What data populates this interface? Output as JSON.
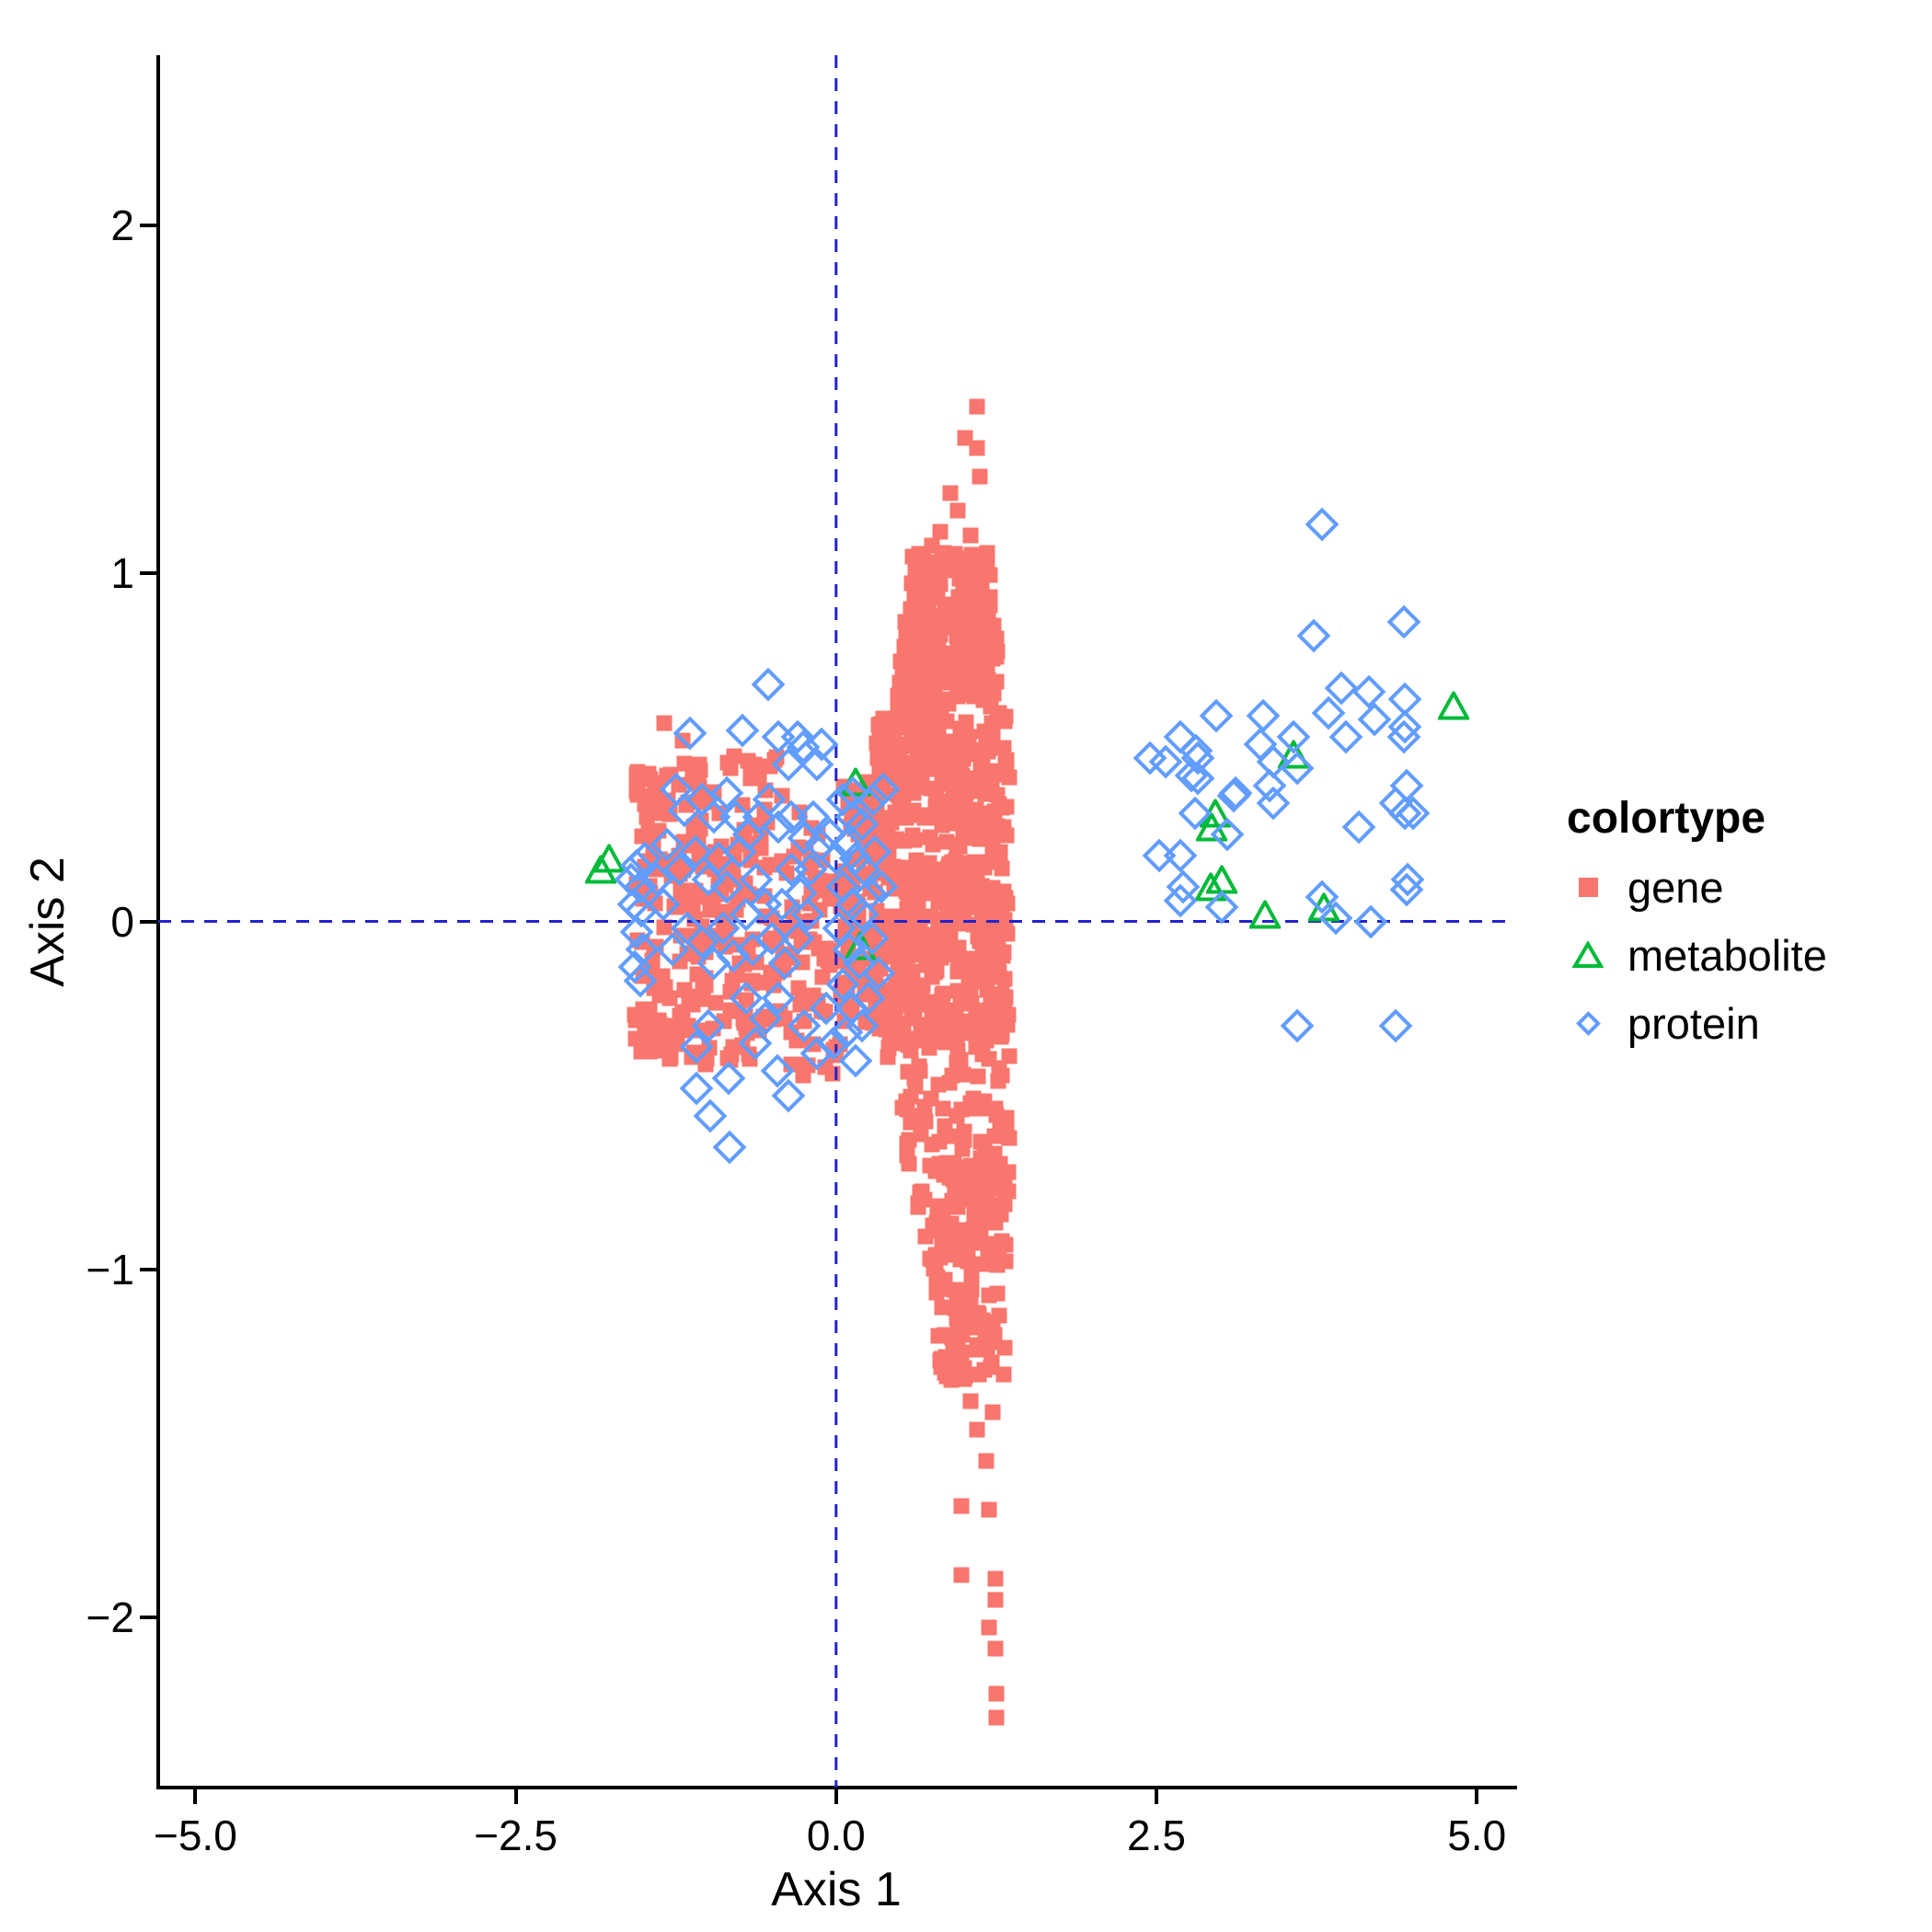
{
  "chart_data": {
    "type": "scatter",
    "title": "",
    "xlabel": "Axis 1",
    "ylabel": "Axis 2",
    "xlim": [
      -5.29,
      5.3
    ],
    "ylim": [
      -2.49,
      2.49
    ],
    "x_ticks": [
      -5.0,
      -2.5,
      0.0,
      2.5,
      5.0
    ],
    "x_tick_labels": [
      "−5.0",
      "−2.5",
      "0.0",
      "2.5",
      "5.0"
    ],
    "y_ticks": [
      2,
      1,
      0,
      -1,
      -2
    ],
    "y_tick_labels": [
      "2",
      "1",
      "0",
      "−1",
      "−2"
    ],
    "grid": false,
    "reference_lines": {
      "vline_x": 0,
      "hline_y": 0,
      "color": "#2323CE",
      "style": "dashed"
    },
    "legend": {
      "title": "colortype",
      "position": "right",
      "entries": [
        {
          "label": "gene",
          "marker": "filled-square",
          "color": "#F8766D"
        },
        {
          "label": "metabolite",
          "marker": "open-triangle",
          "color": "#00BA38"
        },
        {
          "label": "protein",
          "marker": "open-diamond",
          "color": "#619CFF"
        }
      ]
    },
    "series": [
      {
        "name": "gene",
        "marker": "filled-square",
        "color": "#F8766D",
        "marker_px": 17,
        "clusters": [
          {
            "shape": "rect",
            "x": [
              -1.57,
              -0.38
            ],
            "y": [
              -0.4,
              0.48
            ],
            "n": 280,
            "seed": 11
          },
          {
            "shape": "rect",
            "x": [
              -0.35,
              0.08
            ],
            "y": [
              -0.45,
              0.35
            ],
            "n": 70,
            "seed": 22
          },
          {
            "shape": "rect",
            "x": [
              0.05,
              0.35
            ],
            "y": [
              -0.3,
              0.4
            ],
            "n": 90,
            "seed": 33
          },
          {
            "shape": "rect",
            "x": [
              0.3,
              1.35
            ],
            "y": [
              -0.35,
              0.6
            ],
            "n": 520,
            "seed": 44
          },
          {
            "shape": "trapezoid_v",
            "y": [
              0.6,
              1.06
            ],
            "x_top": [
              0.6,
              1.2
            ],
            "x_bottom": [
              0.45,
              1.3
            ],
            "n": 240,
            "seed": 55
          },
          {
            "shape": "trapezoid_v",
            "y": [
              -1.0,
              -0.35
            ],
            "x_top": [
              0.35,
              1.35
            ],
            "x_bottom": [
              0.75,
              1.35
            ],
            "n": 180,
            "seed": 66
          },
          {
            "shape": "rect",
            "x": [
              0.78,
              1.32
            ],
            "y": [
              -1.32,
              -1.0
            ],
            "n": 70,
            "seed": 77
          }
        ],
        "points": [
          [
            1.1,
            1.48
          ],
          [
            1.01,
            1.39
          ],
          [
            1.1,
            1.36
          ],
          [
            1.12,
            1.28
          ],
          [
            0.89,
            1.23
          ],
          [
            0.95,
            1.18
          ],
          [
            0.81,
            1.12
          ],
          [
            1.05,
            1.11
          ],
          [
            1.18,
            1.06
          ],
          [
            0.75,
            1.08
          ],
          [
            0.68,
            1.04
          ],
          [
            0.85,
            -1.19
          ],
          [
            0.98,
            -1.24
          ],
          [
            1.18,
            -1.23
          ],
          [
            0.92,
            -1.29
          ],
          [
            1.16,
            -1.29
          ],
          [
            1.05,
            -1.38
          ],
          [
            1.22,
            -1.41
          ],
          [
            1.1,
            -1.46
          ],
          [
            1.17,
            -1.55
          ],
          [
            0.98,
            -1.68
          ],
          [
            1.19,
            -1.69
          ],
          [
            0.98,
            -1.88
          ],
          [
            1.24,
            -1.89
          ],
          [
            1.24,
            -1.95
          ],
          [
            1.19,
            -2.03
          ],
          [
            1.24,
            -2.09
          ],
          [
            1.25,
            -2.22
          ],
          [
            1.25,
            -2.29
          ],
          [
            -1.34,
            0.57
          ],
          [
            -1.2,
            0.52
          ],
          [
            -1.48,
            0.3
          ],
          [
            -1.31,
            -0.34
          ],
          [
            -1.02,
            -0.41
          ],
          [
            -0.35,
            -0.32
          ]
        ]
      },
      {
        "name": "metabolite",
        "marker": "open-triangle",
        "color": "#00BA38",
        "marker_px": 30,
        "stroke_px": 4,
        "points": [
          [
            -1.84,
            0.15
          ],
          [
            -1.77,
            0.18
          ],
          [
            0.15,
            0.4
          ],
          [
            0.19,
            -0.07
          ],
          [
            2.96,
            0.31
          ],
          [
            2.93,
            0.27
          ],
          [
            2.92,
            0.1
          ],
          [
            3.01,
            0.12
          ],
          [
            3.35,
            0.02
          ],
          [
            3.81,
            0.04
          ],
          [
            3.57,
            0.48
          ],
          [
            4.82,
            0.62
          ]
        ]
      },
      {
        "name": "protein",
        "marker": "open-diamond",
        "color": "#619CFF",
        "marker_px": 26,
        "stroke_px": 4,
        "points": [
          [
            -1.6,
            0.12
          ],
          [
            -1.56,
            0.16
          ],
          [
            -1.53,
            0.1
          ],
          [
            -1.58,
            0.05
          ],
          [
            -1.52,
            0.03
          ],
          [
            -1.56,
            -0.03
          ],
          [
            -1.51,
            -0.08
          ],
          [
            -1.57,
            -0.13
          ],
          [
            -1.53,
            -0.17
          ],
          [
            -1.49,
            0.18
          ],
          [
            -1.14,
            0.54
          ],
          [
            -0.73,
            0.55
          ],
          [
            -0.53,
            0.68
          ],
          [
            -0.45,
            0.53
          ],
          [
            -0.3,
            0.53
          ],
          [
            -0.26,
            0.5
          ],
          [
            -0.11,
            0.51
          ],
          [
            -0.37,
            0.45
          ],
          [
            -0.15,
            0.45
          ],
          [
            -1.25,
            0.38
          ],
          [
            -1.18,
            0.32
          ],
          [
            -1.05,
            0.35
          ],
          [
            -0.95,
            0.3
          ],
          [
            -0.85,
            0.37
          ],
          [
            -0.78,
            0.3
          ],
          [
            -1.32,
            0.22
          ],
          [
            -1.22,
            0.15
          ],
          [
            -1.1,
            0.2
          ],
          [
            -1.0,
            0.12
          ],
          [
            -0.92,
            0.18
          ],
          [
            -0.85,
            0.1
          ],
          [
            -0.75,
            0.2
          ],
          [
            -0.68,
            0.25
          ],
          [
            -0.6,
            0.3
          ],
          [
            -0.52,
            0.35
          ],
          [
            -0.45,
            0.27
          ],
          [
            -0.62,
            0.12
          ],
          [
            -0.55,
            0.05
          ],
          [
            -0.7,
            0.02
          ],
          [
            -0.88,
            -0.02
          ],
          [
            -1.05,
            -0.06
          ],
          [
            -1.16,
            -0.02
          ],
          [
            -0.95,
            -0.12
          ],
          [
            -0.8,
            -0.1
          ],
          [
            -0.65,
            -0.08
          ],
          [
            -0.5,
            -0.05
          ],
          [
            -0.42,
            0.05
          ],
          [
            -0.35,
            0.15
          ],
          [
            -0.28,
            0.08
          ],
          [
            -0.4,
            -0.12
          ],
          [
            -0.3,
            -0.05
          ],
          [
            -0.22,
            0.02
          ],
          [
            -0.35,
            0.3
          ],
          [
            -0.25,
            0.24
          ],
          [
            -0.18,
            0.3
          ],
          [
            -0.12,
            0.22
          ],
          [
            -0.2,
            0.15
          ],
          [
            -1.35,
            0.05
          ],
          [
            -1.28,
            -0.08
          ],
          [
            -1.4,
            0.12
          ],
          [
            -1.0,
            -0.3
          ],
          [
            -1.09,
            -0.36
          ],
          [
            -0.63,
            -0.35
          ],
          [
            -0.46,
            -0.43
          ],
          [
            -0.84,
            -0.45
          ],
          [
            -1.09,
            -0.48
          ],
          [
            -0.98,
            -0.56
          ],
          [
            -0.83,
            -0.65
          ],
          [
            -0.37,
            -0.5
          ],
          [
            -0.55,
            -0.28
          ],
          [
            -0.25,
            -0.3
          ],
          [
            -0.15,
            -0.38
          ],
          [
            -0.7,
            -0.22
          ],
          [
            -0.45,
            -0.22
          ],
          [
            0.05,
            0.35
          ],
          [
            0.13,
            0.37
          ],
          [
            0.29,
            0.35
          ],
          [
            0.37,
            0.38
          ],
          [
            0.12,
            0.3
          ],
          [
            0.2,
            0.28
          ],
          [
            0.08,
            0.22
          ],
          [
            0.15,
            0.18
          ],
          [
            0.22,
            0.15
          ],
          [
            0.3,
            0.2
          ],
          [
            0.05,
            0.1
          ],
          [
            0.12,
            0.05
          ],
          [
            0.2,
            0.02
          ],
          [
            0.27,
            0.08
          ],
          [
            0.02,
            -0.02
          ],
          [
            0.1,
            -0.08
          ],
          [
            0.18,
            -0.12
          ],
          [
            0.05,
            -0.18
          ],
          [
            0.12,
            -0.25
          ],
          [
            0.2,
            -0.3
          ],
          [
            0.0,
            0.18
          ],
          [
            -0.05,
            0.25
          ],
          [
            -0.08,
            -0.25
          ],
          [
            0.28,
            -0.05
          ],
          [
            0.35,
            0.1
          ],
          [
            0.33,
            -0.15
          ],
          [
            0.25,
            -0.22
          ],
          [
            0.08,
            -0.32
          ],
          [
            0.15,
            -0.4
          ],
          [
            -0.02,
            -0.35
          ],
          [
            3.79,
            1.14
          ],
          [
            3.73,
            0.82
          ],
          [
            4.43,
            0.86
          ],
          [
            3.94,
            0.67
          ],
          [
            4.16,
            0.66
          ],
          [
            3.84,
            0.6
          ],
          [
            4.44,
            0.64
          ],
          [
            4.44,
            0.56
          ],
          [
            2.97,
            0.59
          ],
          [
            3.33,
            0.59
          ],
          [
            2.69,
            0.53
          ],
          [
            2.45,
            0.47
          ],
          [
            2.57,
            0.46
          ],
          [
            2.81,
            0.49
          ],
          [
            2.82,
            0.47
          ],
          [
            2.77,
            0.42
          ],
          [
            2.82,
            0.41
          ],
          [
            3.31,
            0.51
          ],
          [
            3.57,
            0.53
          ],
          [
            3.6,
            0.44
          ],
          [
            3.41,
            0.46
          ],
          [
            3.98,
            0.53
          ],
          [
            4.2,
            0.58
          ],
          [
            4.43,
            0.53
          ],
          [
            4.45,
            0.39
          ],
          [
            3.12,
            0.37
          ],
          [
            3.38,
            0.39
          ],
          [
            3.1,
            0.36
          ],
          [
            3.41,
            0.34
          ],
          [
            2.8,
            0.31
          ],
          [
            3.05,
            0.25
          ],
          [
            4.08,
            0.27
          ],
          [
            4.44,
            0.31
          ],
          [
            4.37,
            0.34
          ],
          [
            4.5,
            0.31
          ],
          [
            2.52,
            0.19
          ],
          [
            2.69,
            0.19
          ],
          [
            2.71,
            0.1
          ],
          [
            2.69,
            0.06
          ],
          [
            3.01,
            0.04
          ],
          [
            3.79,
            0.07
          ],
          [
            3.9,
            0.01
          ],
          [
            4.17,
            0.0
          ],
          [
            4.45,
            0.09
          ],
          [
            4.46,
            0.12
          ],
          [
            3.6,
            -0.3
          ],
          [
            4.37,
            -0.3
          ]
        ]
      }
    ]
  }
}
